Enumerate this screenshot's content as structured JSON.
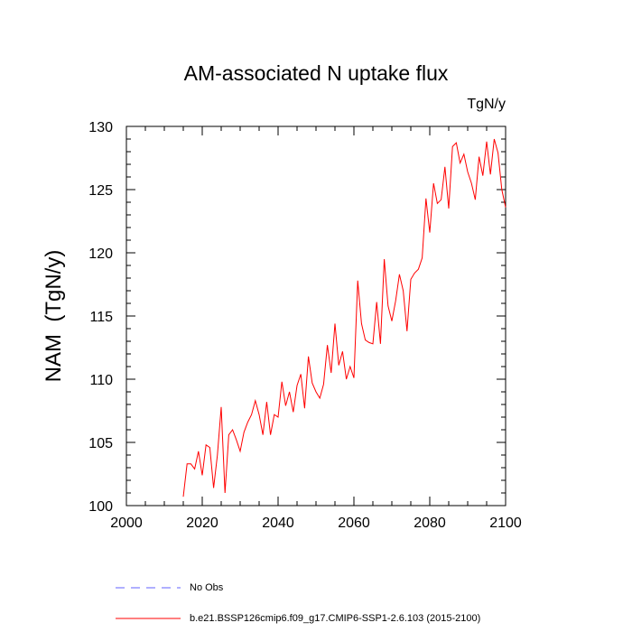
{
  "chart_data": {
    "type": "line",
    "title": "AM-associated N uptake flux",
    "units_label": "TgN/y",
    "xlabel": "",
    "ylabel": "NAM  (TgN/y)",
    "xlim": [
      2000,
      2100
    ],
    "ylim": [
      100,
      130
    ],
    "x_ticks": [
      2000,
      2020,
      2040,
      2060,
      2080,
      2100
    ],
    "y_ticks": [
      100,
      105,
      110,
      115,
      120,
      125,
      130
    ],
    "x_tick_labels": [
      "2000",
      "2020",
      "2040",
      "2060",
      "2080",
      "2100"
    ],
    "y_tick_labels": [
      "100",
      "105",
      "110",
      "115",
      "120",
      "125",
      "130"
    ],
    "series": [
      {
        "name": "b.e21.BSSP126cmip6.f09_g17.CMIP6-SSP1-2.6.103 (2015-2100)",
        "color": "#ff0000",
        "x": [
          2015,
          2016,
          2017,
          2018,
          2019,
          2020,
          2021,
          2022,
          2023,
          2024,
          2025,
          2026,
          2027,
          2028,
          2029,
          2030,
          2031,
          2032,
          2033,
          2034,
          2035,
          2036,
          2037,
          2038,
          2039,
          2040,
          2041,
          2042,
          2043,
          2044,
          2045,
          2046,
          2047,
          2048,
          2049,
          2050,
          2051,
          2052,
          2053,
          2054,
          2055,
          2056,
          2057,
          2058,
          2059,
          2060,
          2061,
          2062,
          2063,
          2064,
          2065,
          2066,
          2067,
          2068,
          2069,
          2070,
          2071,
          2072,
          2073,
          2074,
          2075,
          2076,
          2077,
          2078,
          2079,
          2080,
          2081,
          2082,
          2083,
          2084,
          2085,
          2086,
          2087,
          2088,
          2089,
          2090,
          2091,
          2092,
          2093,
          2094,
          2095,
          2096,
          2097,
          2098,
          2099,
          2100
        ],
        "values": [
          100.7,
          103.3,
          103.3,
          102.9,
          104.3,
          102.4,
          104.8,
          104.6,
          101.4,
          104.0,
          107.8,
          101.0,
          105.6,
          106.0,
          105.2,
          104.3,
          105.8,
          106.6,
          107.2,
          108.3,
          107.2,
          105.6,
          108.2,
          105.6,
          107.2,
          107.0,
          109.8,
          107.9,
          109.0,
          107.4,
          109.5,
          110.4,
          107.7,
          111.8,
          109.7,
          109.0,
          108.5,
          109.6,
          112.7,
          110.5,
          114.4,
          111.1,
          112.2,
          110.0,
          111.0,
          110.1,
          117.8,
          114.4,
          113.1,
          112.9,
          112.8,
          116.1,
          112.8,
          119.5,
          115.8,
          114.6,
          116.2,
          118.3,
          117.0,
          113.8,
          117.9,
          118.4,
          118.7,
          119.6,
          124.3,
          121.6,
          125.5,
          123.9,
          124.2,
          126.8,
          123.5,
          128.4,
          128.7,
          127.1,
          127.8,
          126.4,
          125.5,
          124.2,
          127.6,
          126.1,
          128.8,
          126.2,
          129.0,
          127.9,
          125.0,
          123.6
        ]
      }
    ],
    "legend": [
      {
        "label": "No Obs",
        "color": "#6060ff",
        "style": "dashed"
      },
      {
        "label": "b.e21.BSSP126cmip6.f09_g17.CMIP6-SSP1-2.6.103 (2015-2100)",
        "color": "#ff0000",
        "style": "solid"
      }
    ]
  }
}
